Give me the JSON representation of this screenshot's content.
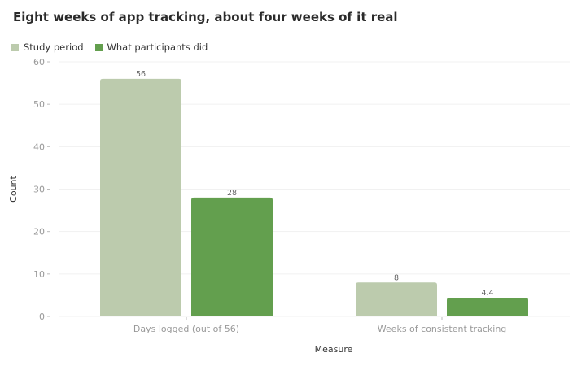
{
  "chart_data": {
    "type": "bar",
    "title": "Eight weeks of app tracking, about four weeks of it real",
    "xlabel": "Measure",
    "ylabel": "Count",
    "categories": [
      "Days logged (out of 56)",
      "Weeks of consistent tracking"
    ],
    "series": [
      {
        "name": "Study period",
        "values": [
          56,
          8
        ],
        "color": "#bccbad"
      },
      {
        "name": "What participants did",
        "values": [
          28,
          4.4
        ],
        "color": "#639f4e"
      }
    ],
    "ylim": [
      0,
      60
    ],
    "yticks": [
      0,
      10,
      20,
      30,
      40,
      50,
      60
    ],
    "grid": true,
    "legend_position": "top-left"
  }
}
